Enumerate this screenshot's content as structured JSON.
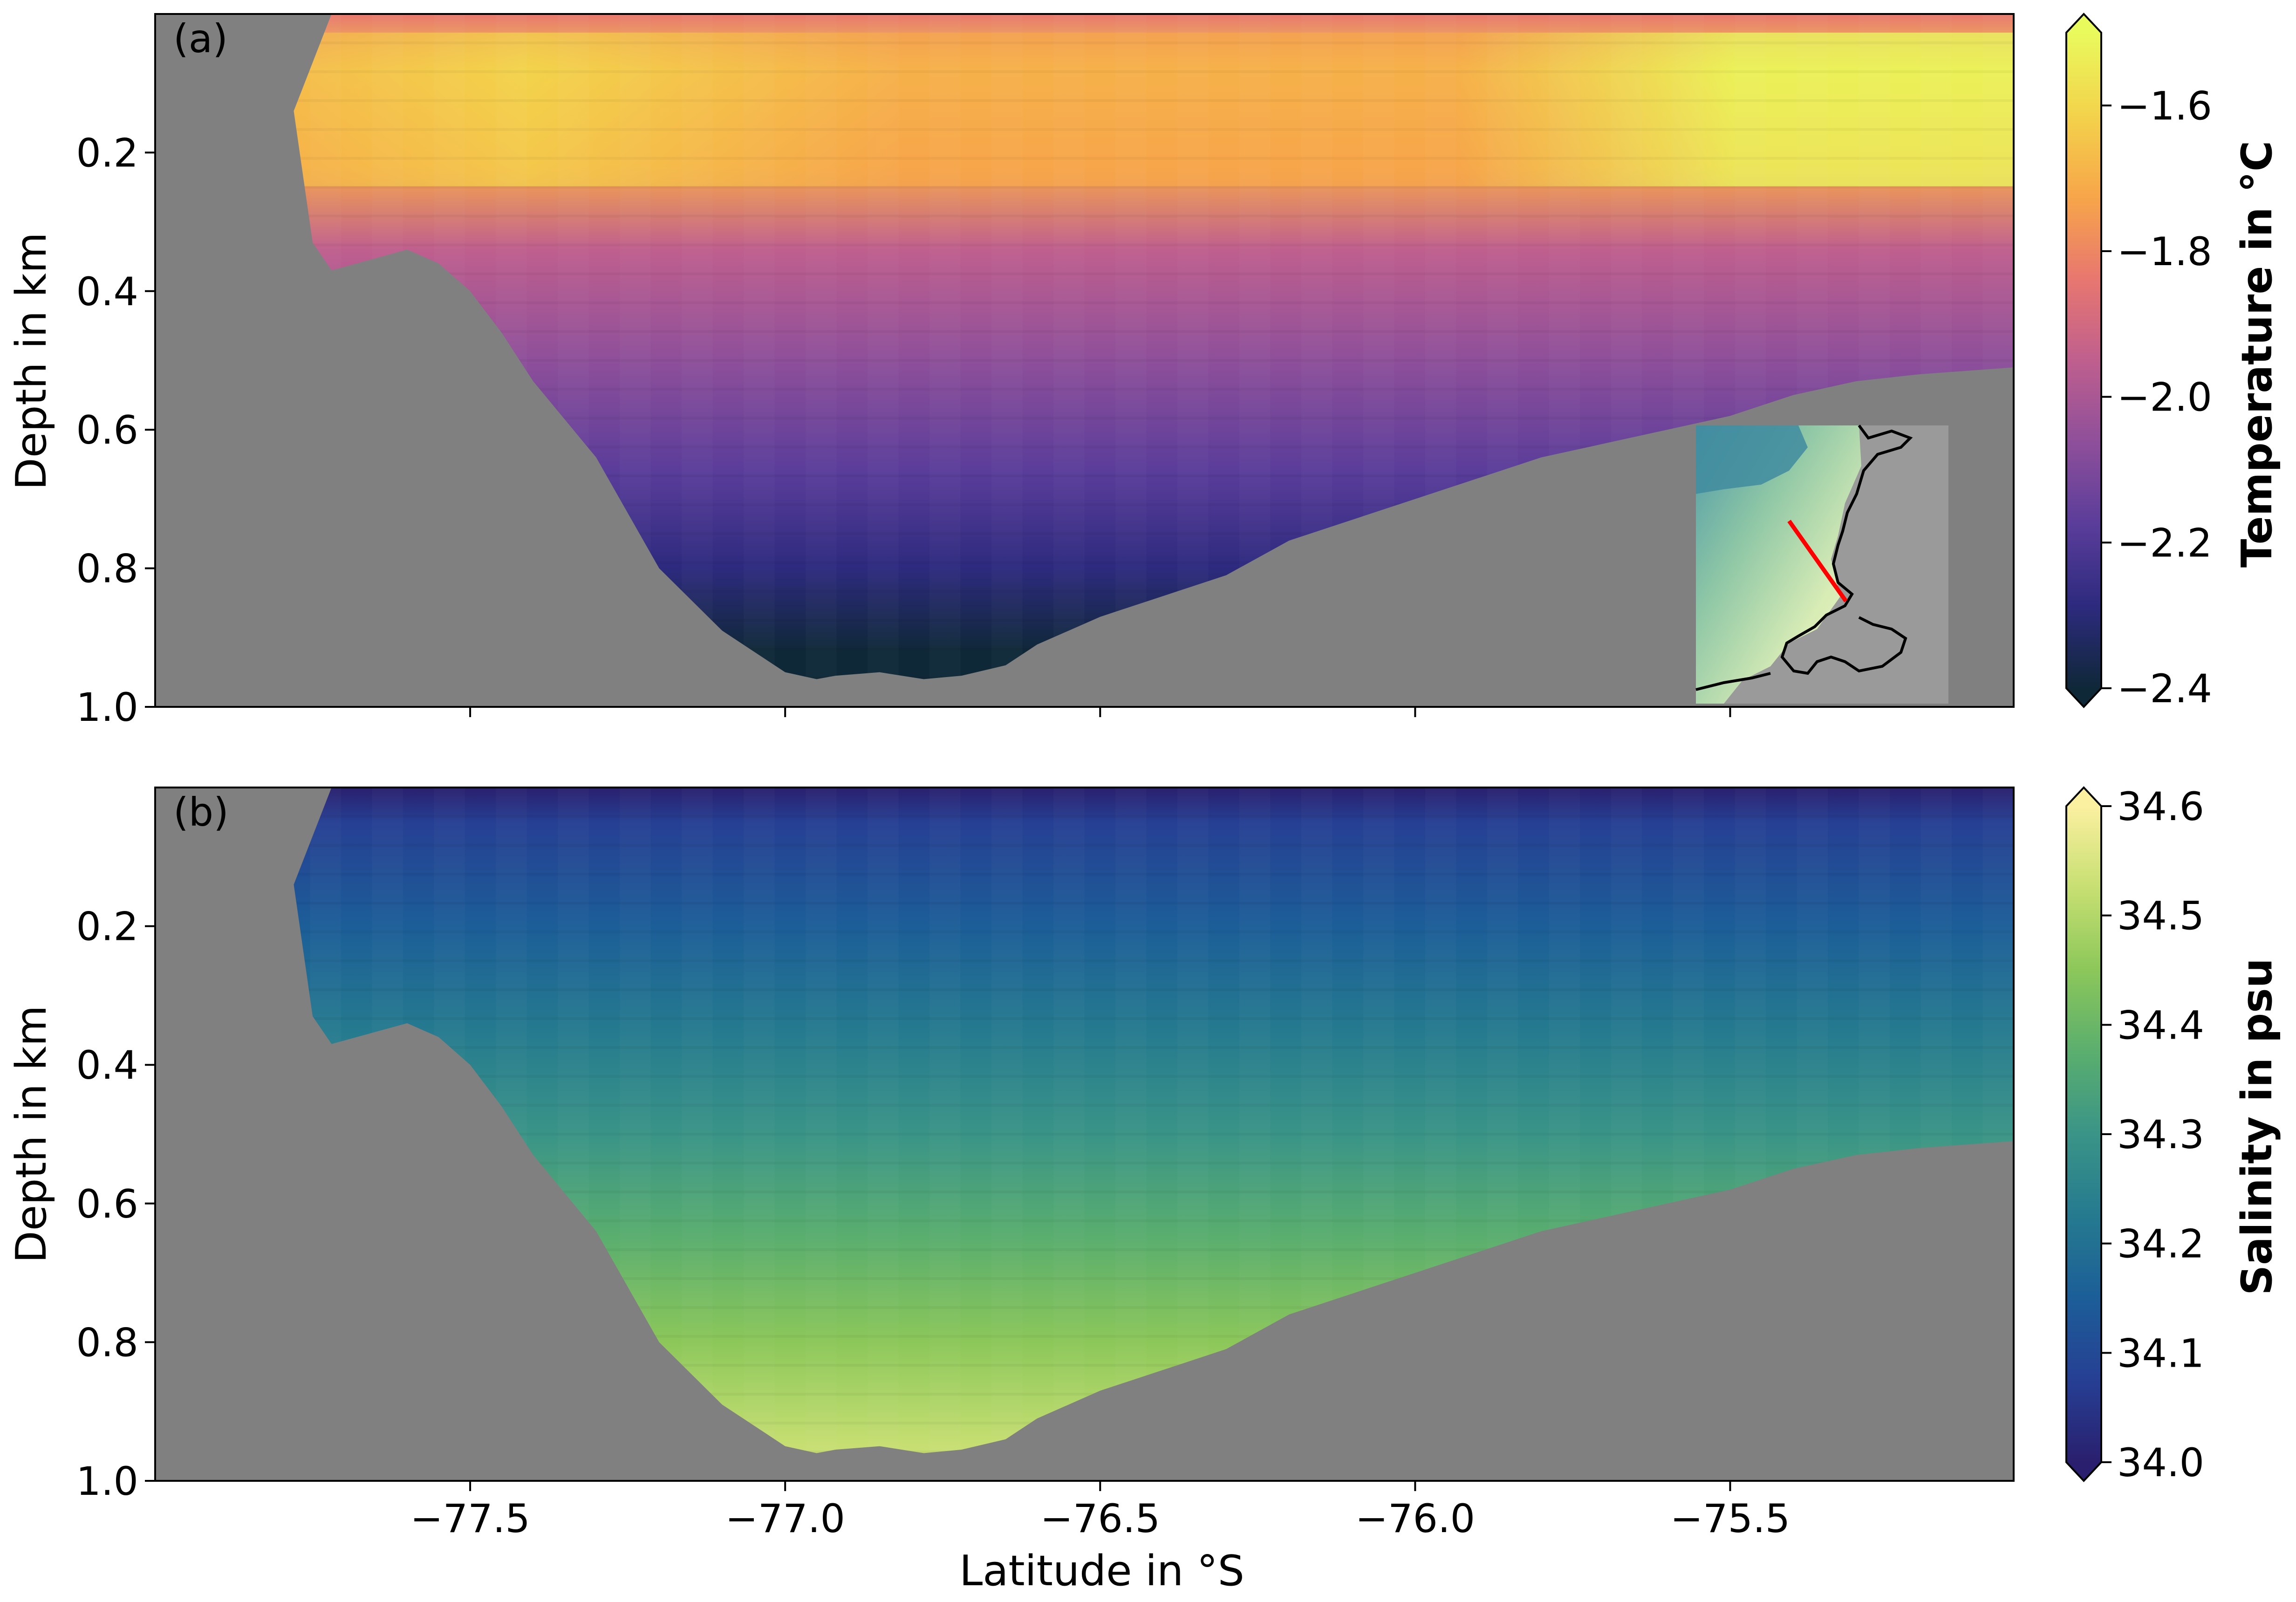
{
  "chart_data": [
    {
      "type": "heatmap",
      "panel_label": "(a)",
      "xlabel": "",
      "ylabel": "Depth in km",
      "xlim": [
        -78.0,
        -75.05
      ],
      "ylim": [
        1.0,
        0.0
      ],
      "yticks": [
        0.2,
        0.4,
        0.6,
        0.8,
        1.0
      ],
      "ytick_labels": [
        "0.2",
        "0.4",
        "0.6",
        "0.8",
        "1.0"
      ],
      "xticks": [
        -77.5,
        -77.0,
        -76.5,
        -76.0,
        -75.5
      ],
      "xtick_labels_shown": false,
      "colorbar": {
        "label": "Temperature in °C",
        "min": -2.4,
        "max": -1.5,
        "ticks": [
          -2.4,
          -2.2,
          -2.0,
          -1.8,
          -1.6
        ],
        "tick_labels": [
          "−2.4",
          "−2.2",
          "−2.0",
          "−1.8",
          "−1.6"
        ],
        "extend": "both",
        "colors": [
          "#0f2838",
          "#2d2a7e",
          "#5a3d9a",
          "#8e4f9a",
          "#bf5f8e",
          "#e8776f",
          "#f7a64a",
          "#f3d34b",
          "#e9fa5d"
        ]
      },
      "bathymetry_color": "#808080",
      "bathymetry": {
        "x": [
          -77.78,
          -77.75,
          -77.72,
          -77.68,
          -77.6,
          -77.55,
          -77.5,
          -77.45,
          -77.4,
          -77.3,
          -77.2,
          -77.1,
          -77.0,
          -76.95,
          -76.92,
          -76.85,
          -76.78,
          -76.72,
          -76.65,
          -76.6,
          -76.5,
          -76.4,
          -76.3,
          -76.2,
          -76.0,
          -75.8,
          -75.6,
          -75.5,
          -75.4,
          -75.3,
          -75.2,
          -75.05
        ],
        "bottom_depth_km": [
          0.14,
          0.33,
          0.37,
          0.36,
          0.34,
          0.36,
          0.4,
          0.46,
          0.53,
          0.64,
          0.8,
          0.89,
          0.95,
          0.96,
          0.955,
          0.95,
          0.96,
          0.955,
          0.94,
          0.91,
          0.87,
          0.84,
          0.81,
          0.76,
          0.7,
          0.64,
          0.6,
          0.58,
          0.55,
          0.53,
          0.52,
          0.51
        ]
      },
      "field_description_levels": {
        "surface_km": 0.02,
        "warm_core_depth_km": 0.15,
        "cold_bottom_value": -2.4,
        "surface_value_west": -1.75,
        "surface_value_east": -1.55
      },
      "inset": {
        "type": "map",
        "track_color": "#ff0000"
      }
    },
    {
      "type": "heatmap",
      "panel_label": "(b)",
      "xlabel": "Latitude in °S",
      "ylabel": "Depth in km",
      "xlim": [
        -78.0,
        -75.05
      ],
      "ylim": [
        1.0,
        0.0
      ],
      "yticks": [
        0.2,
        0.4,
        0.6,
        0.8,
        1.0
      ],
      "ytick_labels": [
        "0.2",
        "0.4",
        "0.6",
        "0.8",
        "1.0"
      ],
      "xticks": [
        -77.5,
        -77.0,
        -76.5,
        -76.0,
        -75.5
      ],
      "xtick_labels": [
        "−77.5",
        "−77.0",
        "−76.5",
        "−76.0",
        "−75.5"
      ],
      "colorbar": {
        "label": "Salinity in psu",
        "min": 34.0,
        "max": 34.6,
        "ticks": [
          34.0,
          34.1,
          34.2,
          34.3,
          34.4,
          34.5,
          34.6
        ],
        "tick_labels": [
          "34.0",
          "34.1",
          "34.2",
          "34.3",
          "34.4",
          "34.5",
          "34.6"
        ],
        "extend": "both",
        "colors": [
          "#2a1f6e",
          "#263f93",
          "#1c5e98",
          "#257a8f",
          "#3a9487",
          "#5aae6e",
          "#8cc75a",
          "#c7df72",
          "#fbf0a0"
        ]
      },
      "bathymetry_color": "#808080",
      "bathymetry": {
        "x": [
          -77.78,
          -77.75,
          -77.72,
          -77.68,
          -77.6,
          -77.55,
          -77.5,
          -77.45,
          -77.4,
          -77.3,
          -77.2,
          -77.1,
          -77.0,
          -76.95,
          -76.92,
          -76.85,
          -76.78,
          -76.72,
          -76.65,
          -76.6,
          -76.5,
          -76.4,
          -76.3,
          -76.2,
          -76.0,
          -75.8,
          -75.6,
          -75.5,
          -75.4,
          -75.3,
          -75.2,
          -75.05
        ],
        "bottom_depth_km": [
          0.14,
          0.33,
          0.37,
          0.36,
          0.34,
          0.36,
          0.4,
          0.46,
          0.53,
          0.64,
          0.8,
          0.89,
          0.95,
          0.96,
          0.955,
          0.95,
          0.96,
          0.955,
          0.94,
          0.91,
          0.87,
          0.84,
          0.81,
          0.76,
          0.7,
          0.64,
          0.6,
          0.58,
          0.55,
          0.53,
          0.52,
          0.51
        ]
      },
      "field_description_levels": {
        "surface_value": 34.03,
        "bottom_value": 34.52
      }
    }
  ]
}
